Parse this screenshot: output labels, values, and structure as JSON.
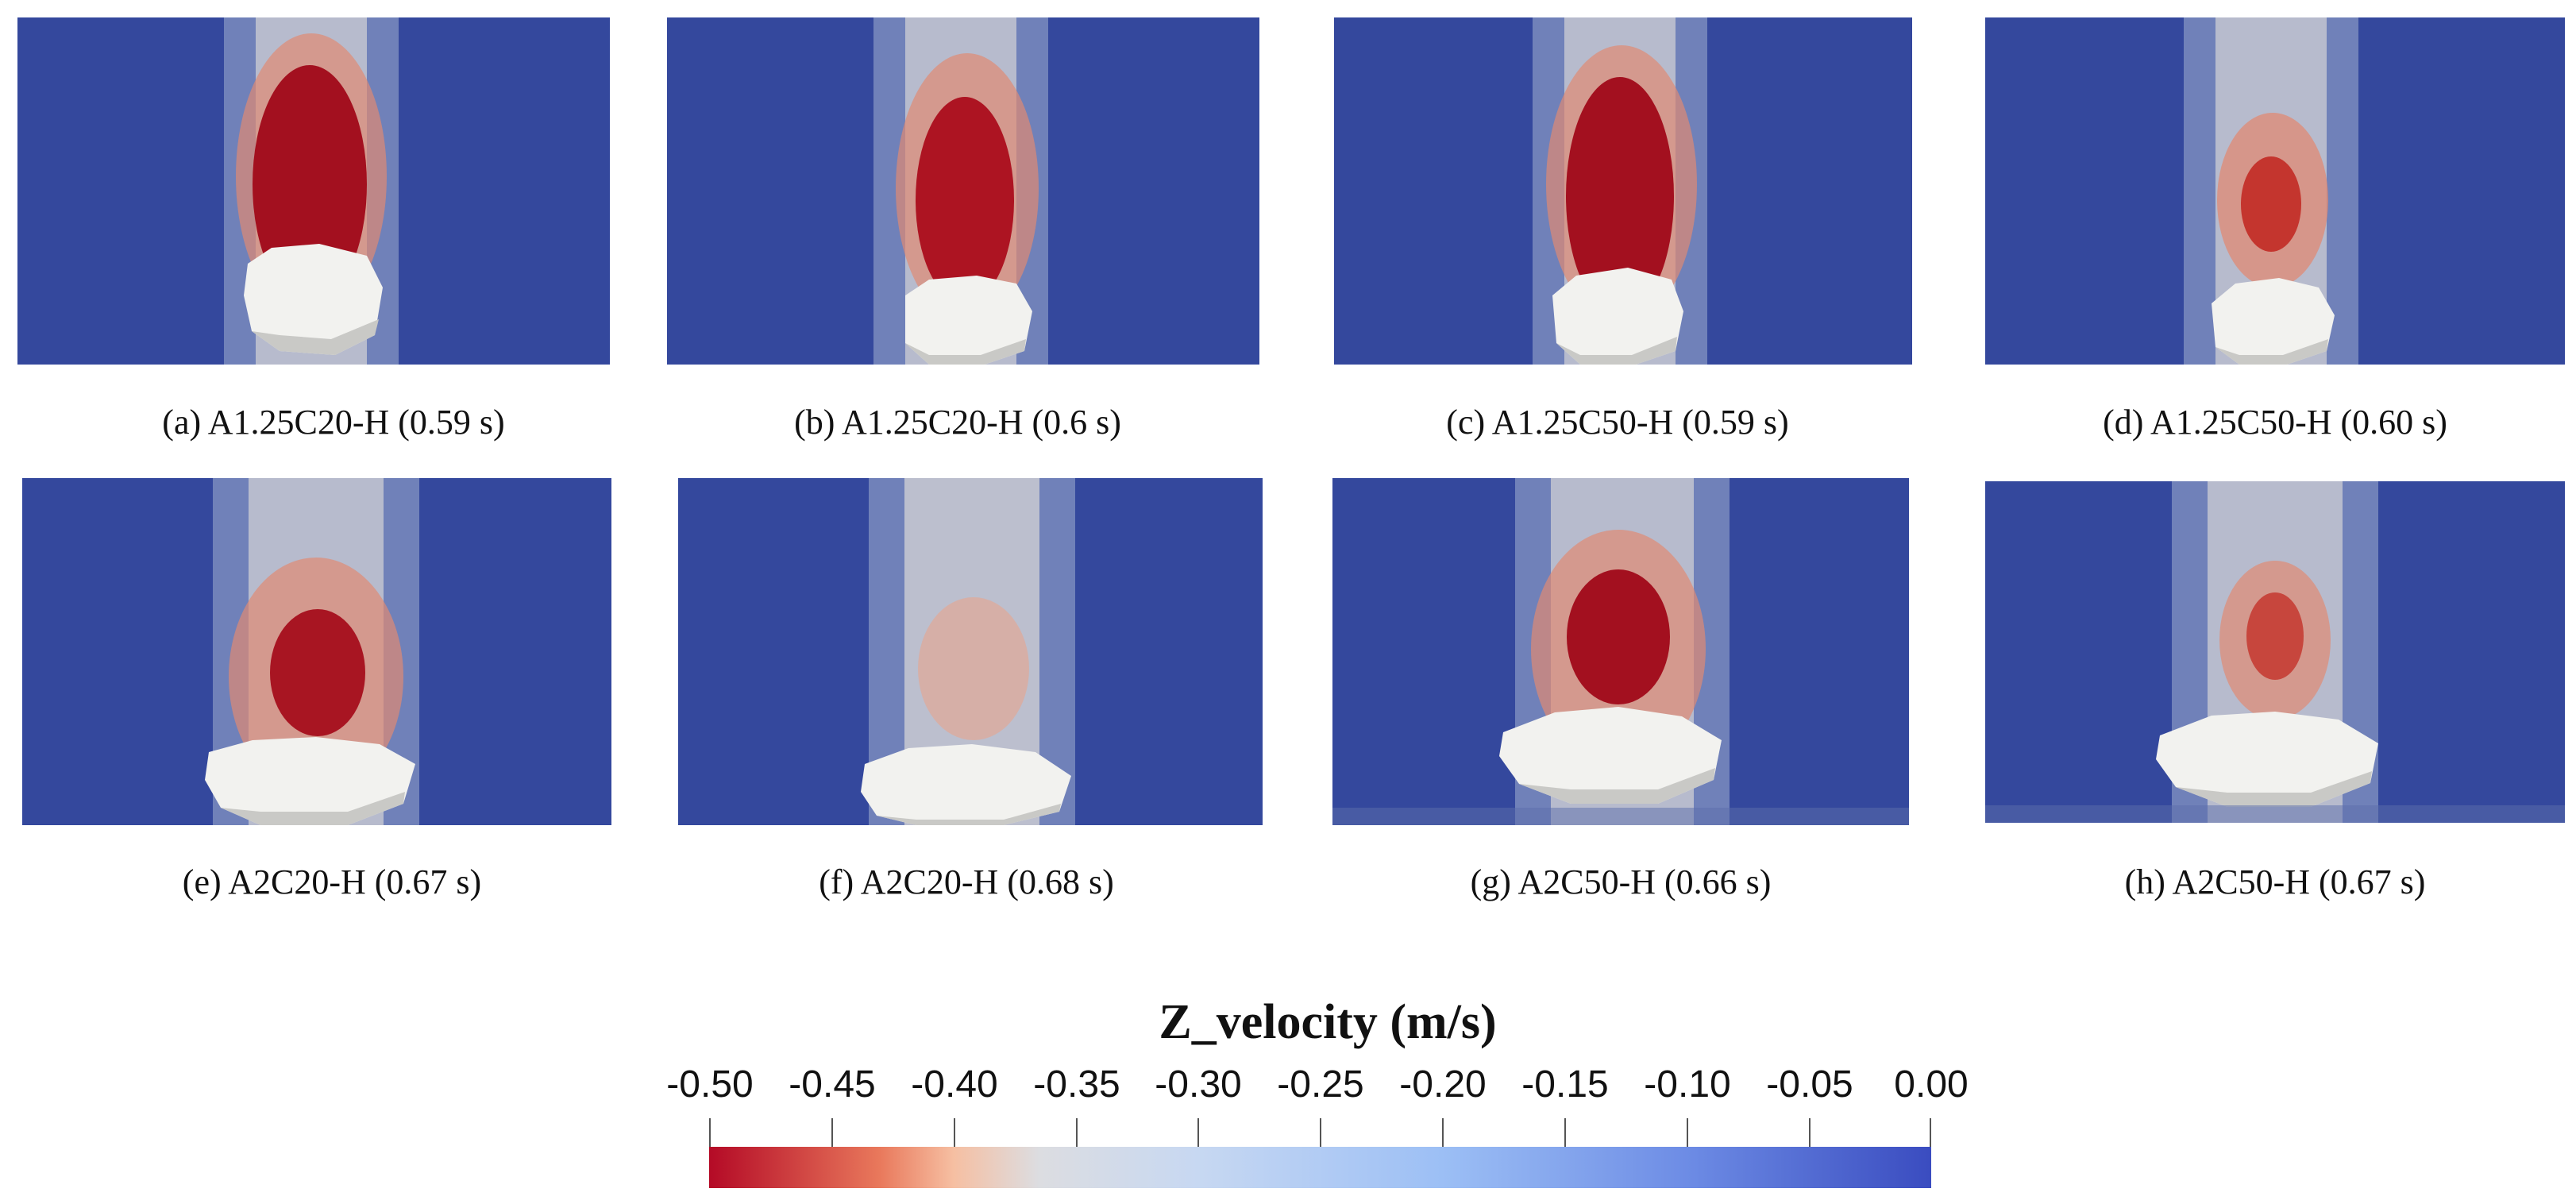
{
  "panels": [
    {
      "caption": "(a) A1.25C20-H (0.59 s)"
    },
    {
      "caption": "(b) A1.25C20-H (0.6 s)"
    },
    {
      "caption": "(c) A1.25C50-H (0.59 s)"
    },
    {
      "caption": "(d) A1.25C50-H (0.60 s)"
    },
    {
      "caption": "(e) A2C20-H (0.67 s)"
    },
    {
      "caption": "(f) A2C20-H (0.68 s)"
    },
    {
      "caption": "(g) A2C50-H (0.66 s)"
    },
    {
      "caption": "(h) A2C50-H (0.67 s)"
    }
  ],
  "colorbar": {
    "title": "Z_velocity (m/s)",
    "ticks": [
      "-0.50",
      "-0.45",
      "-0.40",
      "-0.35",
      "-0.30",
      "-0.25",
      "-0.20",
      "-0.15",
      "-0.10",
      "-0.05",
      "0.00"
    ],
    "min": -0.5,
    "max": 0.0,
    "colors": {
      "low": "#b40a26",
      "mid": "#dcdde1",
      "high": "#3a4cc0"
    }
  }
}
